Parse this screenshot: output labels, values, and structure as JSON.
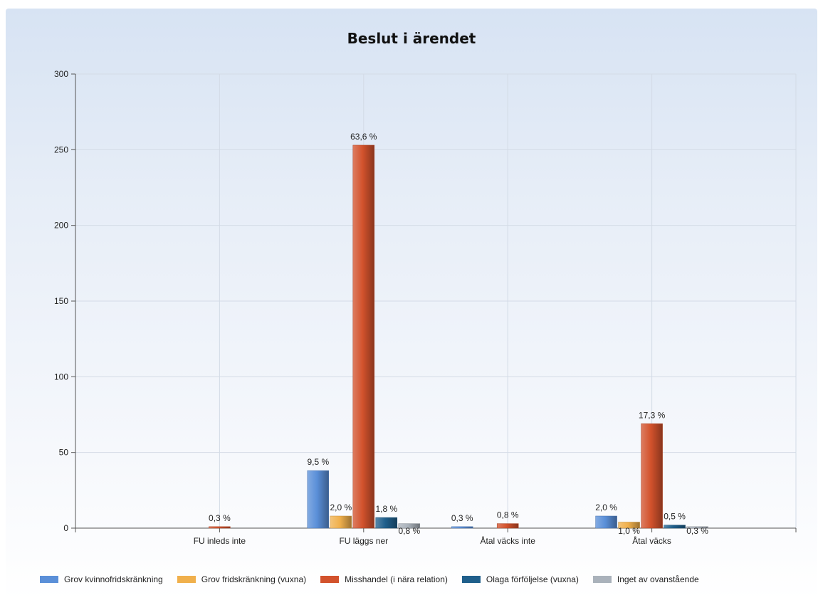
{
  "chart_data": {
    "type": "bar",
    "title": "Beslut i ärendet",
    "xlabel": "",
    "ylabel": "",
    "ylim": [
      0,
      300
    ],
    "yticks": [
      0,
      50,
      100,
      150,
      200,
      250,
      300
    ],
    "categories": [
      "FU inleds inte",
      "FU läggs ner",
      "Åtal väcks inte",
      "Åtal väcks"
    ],
    "grid": true,
    "legend_position": "bottom",
    "series": [
      {
        "name": "Grov kvinnofridskränkning",
        "color": "#5a8fd8",
        "values": [
          0,
          38,
          1,
          8
        ],
        "labels": [
          "",
          "9,5 %",
          "0,3 %",
          "2,0 %"
        ]
      },
      {
        "name": "Grov fridskränkning (vuxna)",
        "color": "#f0b04c",
        "values": [
          0,
          8,
          0,
          4
        ],
        "labels": [
          "",
          "2,0 %",
          "",
          "1,0 %"
        ]
      },
      {
        "name": "Misshandel (i nära relation)",
        "color": "#d2522c",
        "values": [
          1,
          253,
          3,
          69
        ],
        "labels": [
          "0,3 %",
          "63,6 %",
          "0,8 %",
          "17,3 %"
        ]
      },
      {
        "name": "Olaga förföljelse (vuxna)",
        "color": "#1f5f8b",
        "values": [
          0,
          7,
          0,
          2
        ],
        "labels": [
          "",
          "1,8 %",
          "",
          "0,5 %"
        ]
      },
      {
        "name": "Inget av ovanstående",
        "color": "#aab2bb",
        "values": [
          0,
          3,
          0,
          1
        ],
        "labels": [
          "",
          "0,8 %",
          "",
          "0,3 %"
        ]
      }
    ]
  }
}
